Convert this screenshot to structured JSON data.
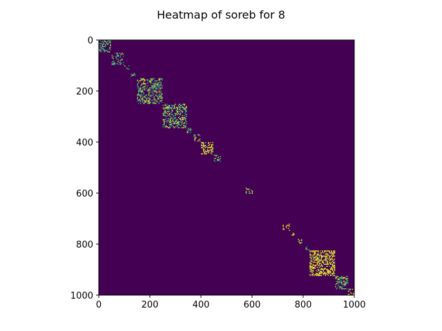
{
  "chart_data": {
    "type": "heatmap",
    "title": "Heatmap of soreb for 8",
    "xlabel": "",
    "ylabel": "",
    "xlim": [
      0,
      1000
    ],
    "ylim": [
      1000,
      0
    ],
    "x_ticks": [
      0,
      200,
      400,
      600,
      800,
      1000
    ],
    "y_ticks": [
      0,
      200,
      400,
      600,
      800,
      1000
    ],
    "x_tick_labels": [
      "0",
      "200",
      "400",
      "600",
      "800",
      "1000"
    ],
    "y_tick_labels": [
      "0",
      "200",
      "400",
      "600",
      "800",
      "1000"
    ],
    "colormap": "viridis",
    "background_value": 0,
    "blocks": [
      {
        "start": 0,
        "end": 45,
        "density": 0.45,
        "value": 0.55
      },
      {
        "start": 50,
        "end": 95,
        "density": 0.4,
        "value": 0.55
      },
      {
        "start": 100,
        "end": 120,
        "density": 0.35,
        "value": 0.5
      },
      {
        "start": 125,
        "end": 145,
        "density": 0.35,
        "value": 0.5
      },
      {
        "start": 150,
        "end": 250,
        "density": 0.45,
        "value": 0.6
      },
      {
        "start": 250,
        "end": 345,
        "density": 0.45,
        "value": 0.6
      },
      {
        "start": 345,
        "end": 365,
        "density": 0.4,
        "value": 0.6
      },
      {
        "start": 370,
        "end": 395,
        "density": 0.4,
        "value": 0.65
      },
      {
        "start": 400,
        "end": 445,
        "density": 0.5,
        "value": 0.85
      },
      {
        "start": 450,
        "end": 475,
        "density": 0.4,
        "value": 0.6
      },
      {
        "start": 575,
        "end": 600,
        "density": 0.35,
        "value": 0.6
      },
      {
        "start": 720,
        "end": 745,
        "density": 0.25,
        "value": 0.95
      },
      {
        "start": 755,
        "end": 775,
        "density": 0.25,
        "value": 0.95
      },
      {
        "start": 780,
        "end": 800,
        "density": 0.35,
        "value": 0.6
      },
      {
        "start": 805,
        "end": 825,
        "density": 0.35,
        "value": 0.6
      },
      {
        "start": 825,
        "end": 925,
        "density": 0.5,
        "value": 0.9
      },
      {
        "start": 925,
        "end": 975,
        "density": 0.45,
        "value": 0.6
      },
      {
        "start": 975,
        "end": 1000,
        "density": 0.25,
        "value": 0.9
      }
    ],
    "colors": {
      "background": "#440154",
      "palette": [
        "#3b528b",
        "#21918c",
        "#5ec962",
        "#fde725"
      ]
    }
  }
}
